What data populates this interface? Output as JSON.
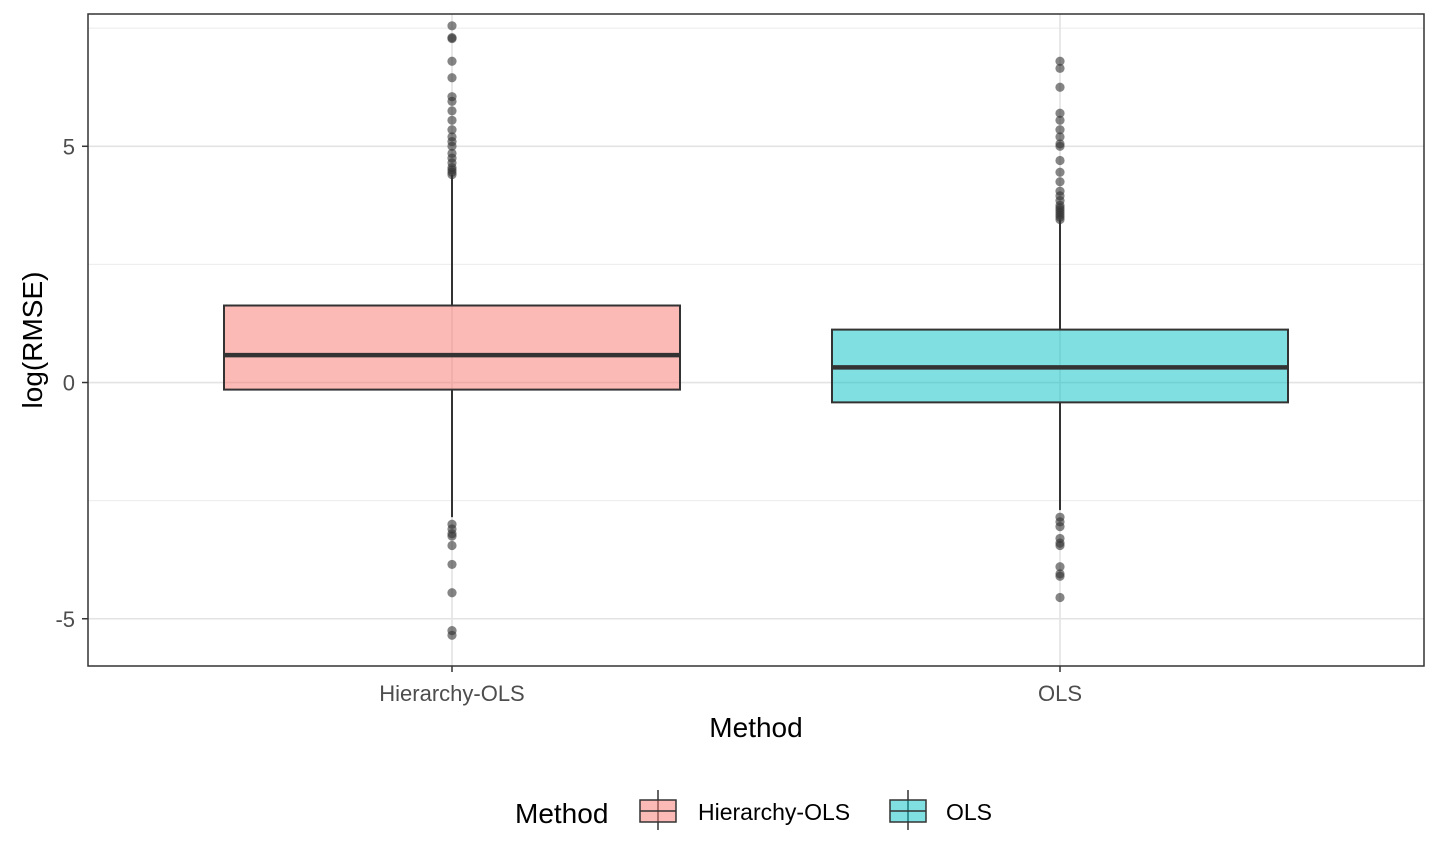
{
  "chart_data": {
    "type": "boxplot",
    "title": "",
    "xlabel": "Method",
    "ylabel": "log(RMSE)",
    "ylim": [
      -6,
      7.8
    ],
    "y_ticks": [
      -5,
      0,
      5
    ],
    "y_tick_labels": [
      "-5",
      "0",
      "5"
    ],
    "grid": true,
    "legend": {
      "title": "Method",
      "position": "bottom"
    },
    "categories": [
      "Hierarchy-OLS",
      "OLS"
    ],
    "series": [
      {
        "name": "Hierarchy-OLS",
        "color": "#F8766D",
        "q1": -0.15,
        "median": 0.58,
        "q3": 1.63,
        "whisker_low": -2.85,
        "whisker_high": 4.4,
        "outliers": [
          7.55,
          7.3,
          7.28,
          6.8,
          6.45,
          6.05,
          5.95,
          5.75,
          5.55,
          5.35,
          5.2,
          5.1,
          5.0,
          4.85,
          4.75,
          4.65,
          4.55,
          4.5,
          4.45,
          4.4,
          -3.0,
          -3.1,
          -3.2,
          -3.25,
          -3.45,
          -3.85,
          -4.45,
          -5.25,
          -5.35
        ]
      },
      {
        "name": "OLS",
        "color": "#00BFC4",
        "q1": -0.42,
        "median": 0.32,
        "q3": 1.12,
        "whisker_low": -2.7,
        "whisker_high": 3.45,
        "outliers": [
          6.8,
          6.65,
          6.25,
          5.7,
          5.55,
          5.35,
          5.2,
          5.05,
          5.0,
          4.7,
          4.45,
          4.25,
          4.05,
          3.95,
          3.85,
          3.75,
          3.7,
          3.65,
          3.6,
          3.55,
          3.5,
          3.45,
          -2.85,
          -2.95,
          -3.05,
          -3.3,
          -3.4,
          -3.45,
          -3.9,
          -4.05,
          -4.1,
          -4.55
        ]
      }
    ]
  }
}
